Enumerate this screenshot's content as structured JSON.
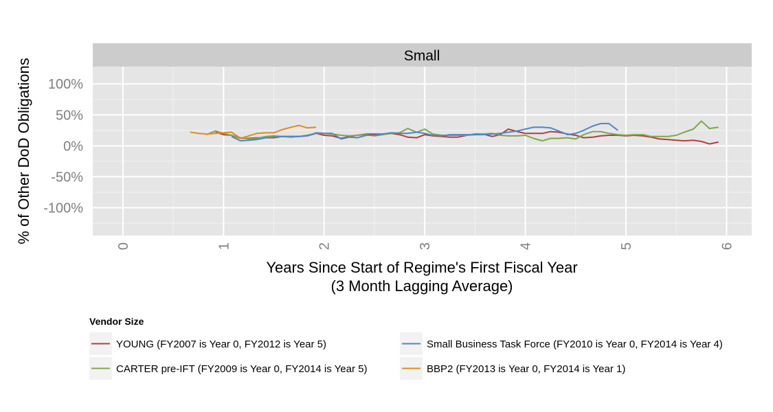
{
  "chart_data": {
    "type": "line",
    "facet_label": "Small",
    "xlabel": [
      "Years Since Start of Regime's First Fiscal Year",
      "(3 Month Lagging Average)"
    ],
    "ylabel": "% of Other DoD Obligations",
    "xlim": [
      -0.3,
      6.25
    ],
    "ylim": [
      -1.45,
      1.28
    ],
    "x_ticks": [
      0,
      1,
      2,
      3,
      4,
      5,
      6
    ],
    "x_tick_labels": [
      "0",
      "1",
      "2",
      "3",
      "4",
      "5",
      "6"
    ],
    "y_ticks": [
      1,
      0.5,
      0,
      -0.5,
      -1
    ],
    "y_tick_labels": [
      "100%",
      "50%",
      "0%",
      "-50%",
      "-100%"
    ],
    "grid": true,
    "legend": {
      "title": "Vendor Size",
      "position": "bottom"
    },
    "series": [
      {
        "name": "YOUNG (FY2007 is Year 0, FY2012 is Year 5)",
        "color": "#B2403C",
        "x": [
          0.92,
          1.0,
          1.08,
          1.17,
          1.25,
          1.33,
          1.42,
          1.5,
          1.58,
          1.67,
          1.75,
          1.83,
          1.92,
          2.0,
          2.08,
          2.17,
          2.25,
          2.33,
          2.42,
          2.5,
          2.58,
          2.67,
          2.75,
          2.83,
          2.92,
          3.0,
          3.08,
          3.17,
          3.25,
          3.33,
          3.42,
          3.5,
          3.58,
          3.67,
          3.75,
          3.83,
          3.92,
          4.0,
          4.08,
          4.17,
          4.25,
          4.33,
          4.42,
          4.5,
          4.58,
          4.67,
          4.75,
          4.83,
          4.92,
          5.0,
          5.08,
          5.17,
          5.25,
          5.33,
          5.42,
          5.5,
          5.58,
          5.67,
          5.75,
          5.83,
          5.92
        ],
        "y": [
          0.22,
          0.18,
          0.17,
          0.12,
          0.12,
          0.13,
          0.13,
          0.13,
          0.15,
          0.15,
          0.15,
          0.16,
          0.2,
          0.17,
          0.16,
          0.12,
          0.15,
          0.17,
          0.19,
          0.19,
          0.19,
          0.2,
          0.18,
          0.14,
          0.13,
          0.18,
          0.16,
          0.15,
          0.14,
          0.14,
          0.17,
          0.19,
          0.19,
          0.15,
          0.18,
          0.27,
          0.23,
          0.2,
          0.2,
          0.2,
          0.23,
          0.22,
          0.19,
          0.17,
          0.13,
          0.14,
          0.16,
          0.17,
          0.17,
          0.16,
          0.17,
          0.16,
          0.14,
          0.11,
          0.1,
          0.09,
          0.08,
          0.09,
          0.07,
          0.03,
          0.06
        ]
      },
      {
        "name": "CARTER pre-IFT (FY2009 is Year 0, FY2014 is Year 5)",
        "color": "#7FA64A",
        "x": [
          0.83,
          0.92,
          1.0,
          1.08,
          1.17,
          1.25,
          1.33,
          1.42,
          1.5,
          1.58,
          1.67,
          1.75,
          1.83,
          1.92,
          2.0,
          2.08,
          2.17,
          2.25,
          2.33,
          2.42,
          2.5,
          2.58,
          2.67,
          2.75,
          2.83,
          2.92,
          3.0,
          3.08,
          3.17,
          3.25,
          3.33,
          3.42,
          3.5,
          3.58,
          3.67,
          3.75,
          3.83,
          3.92,
          4.0,
          4.08,
          4.17,
          4.25,
          4.33,
          4.42,
          4.5,
          4.58,
          4.67,
          4.75,
          4.83,
          4.92,
          5.0,
          5.08,
          5.17,
          5.25,
          5.33,
          5.42,
          5.5,
          5.58,
          5.67,
          5.75,
          5.83,
          5.92
        ],
        "y": [
          0.18,
          0.24,
          0.2,
          0.17,
          0.13,
          0.11,
          0.12,
          0.15,
          0.16,
          0.15,
          0.14,
          0.15,
          0.17,
          0.2,
          0.2,
          0.19,
          0.17,
          0.16,
          0.17,
          0.18,
          0.16,
          0.18,
          0.2,
          0.21,
          0.28,
          0.22,
          0.27,
          0.19,
          0.17,
          0.17,
          0.17,
          0.17,
          0.18,
          0.19,
          0.2,
          0.17,
          0.16,
          0.16,
          0.17,
          0.12,
          0.08,
          0.12,
          0.12,
          0.13,
          0.11,
          0.18,
          0.23,
          0.23,
          0.2,
          0.18,
          0.17,
          0.18,
          0.18,
          0.15,
          0.15,
          0.15,
          0.17,
          0.22,
          0.27,
          0.4,
          0.28,
          0.3
        ]
      },
      {
        "name": "Small Business Task Force (FY2010 is Year 0, FY2014 is Year 4)",
        "color": "#4E86C6",
        "x": [
          1.08,
          1.17,
          1.25,
          1.33,
          1.42,
          1.5,
          1.58,
          1.67,
          1.75,
          1.83,
          1.92,
          2.0,
          2.08,
          2.17,
          2.25,
          2.33,
          2.42,
          2.5,
          2.58,
          2.67,
          2.75,
          2.83,
          2.92,
          3.0,
          3.08,
          3.17,
          3.25,
          3.33,
          3.42,
          3.5,
          3.58,
          3.67,
          3.75,
          3.83,
          3.92,
          4.0,
          4.08,
          4.17,
          4.25,
          4.33,
          4.42,
          4.5,
          4.58,
          4.67,
          4.75,
          4.83,
          4.92
        ],
        "y": [
          0.15,
          0.08,
          0.09,
          0.1,
          0.13,
          0.14,
          0.15,
          0.15,
          0.15,
          0.16,
          0.21,
          0.2,
          0.2,
          0.11,
          0.14,
          0.13,
          0.17,
          0.17,
          0.19,
          0.21,
          0.2,
          0.2,
          0.22,
          0.2,
          0.17,
          0.16,
          0.18,
          0.18,
          0.18,
          0.18,
          0.18,
          0.19,
          0.2,
          0.22,
          0.24,
          0.27,
          0.3,
          0.3,
          0.29,
          0.24,
          0.18,
          0.2,
          0.25,
          0.32,
          0.36,
          0.36,
          0.25
        ]
      },
      {
        "name": "BBP2 (FY2013 is Year 0, FY2014 is Year 1)",
        "color": "#E18A20",
        "x": [
          0.67,
          0.75,
          0.83,
          1.08,
          1.17,
          1.25,
          1.33,
          1.42,
          1.5,
          1.58,
          1.67,
          1.75,
          1.83,
          1.92
        ],
        "y": [
          0.22,
          0.2,
          0.19,
          0.22,
          0.12,
          0.16,
          0.2,
          0.21,
          0.21,
          0.26,
          0.3,
          0.33,
          0.29,
          0.3
        ]
      }
    ]
  }
}
